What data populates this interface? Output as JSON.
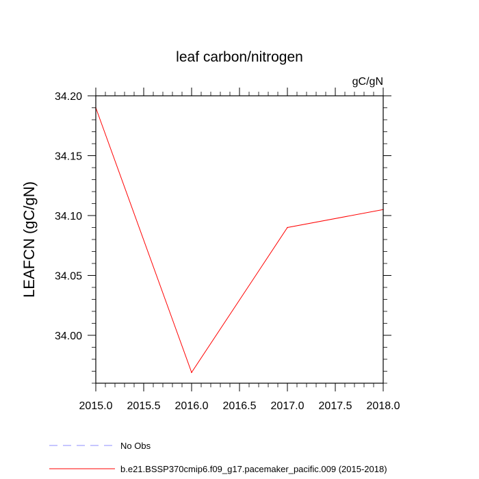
{
  "chart_data": {
    "type": "line",
    "title": "leaf carbon/nitrogen",
    "units": "gC/gN",
    "ylabel": "LEAFCN  (gC/gN)",
    "xlabel": "",
    "xlim": [
      2015.0,
      2018.0
    ],
    "ylim": [
      33.96,
      34.2
    ],
    "x_ticks": [
      "2015.0",
      "2015.5",
      "2016.0",
      "2016.5",
      "2017.0",
      "2017.5",
      "2018.0"
    ],
    "y_ticks": [
      "34.00",
      "34.05",
      "34.10",
      "34.15",
      "34.20"
    ],
    "legend_position": "bottom-left",
    "series": [
      {
        "name": "b.e21.BSSP370cmip6.f09_g17.pacemaker_pacific.009 (2015-2018)",
        "color": "#ff0000",
        "style": "solid",
        "x": [
          2015.0,
          2016.0,
          2017.0,
          2018.0
        ],
        "y": [
          34.19,
          33.969,
          34.09,
          34.105
        ]
      },
      {
        "name": "No Obs",
        "color": "#8c8cff",
        "style": "dashed",
        "x": [],
        "y": []
      }
    ]
  }
}
